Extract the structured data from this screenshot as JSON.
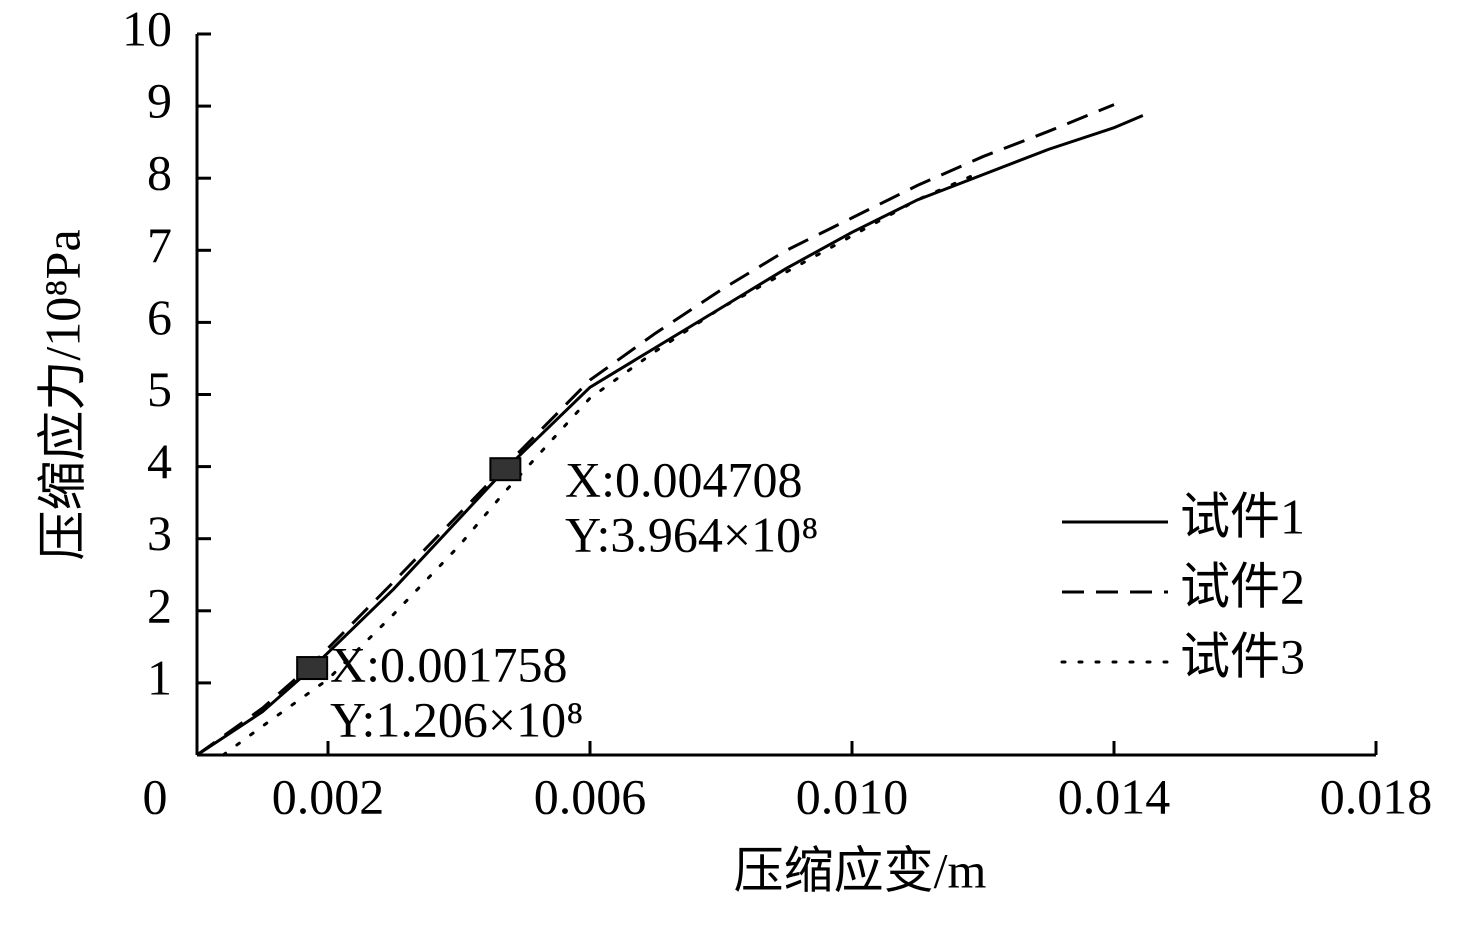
{
  "chart_data": {
    "type": "line",
    "xlabel": "压缩应变/m",
    "ylabel": "压缩应力/10⁸Pa",
    "xlim": [
      0,
      0.018
    ],
    "ylim": [
      0,
      10
    ],
    "xticks": [
      0,
      0.002,
      0.006,
      {
        "value": 0.01,
        "label": "0.010"
      },
      0.014,
      0.018
    ],
    "yticks": [
      1,
      2,
      3,
      4,
      5,
      6,
      7,
      8,
      9,
      10
    ],
    "grid": false,
    "legend": "right",
    "series": [
      {
        "name": "试件1",
        "color": "#000000",
        "dash": "solid",
        "x": [
          0,
          0.001,
          0.001758,
          0.003,
          0.004708,
          0.006,
          0.007,
          0.008,
          0.009,
          0.01,
          0.011,
          0.012,
          0.013,
          0.014,
          0.01444
        ],
        "values": [
          0,
          0.6,
          1.206,
          2.3,
          3.964,
          5.1,
          5.65,
          6.2,
          6.75,
          7.25,
          7.7,
          8.05,
          8.4,
          8.7,
          8.87
        ]
      },
      {
        "name": "试件2",
        "color": "#000000",
        "dash": "dashed",
        "x": [
          0,
          0.001,
          0.00176,
          0.003,
          0.0047,
          0.006,
          0.007,
          0.008,
          0.009,
          0.01,
          0.011,
          0.012,
          0.013,
          0.014
        ],
        "values": [
          0,
          0.65,
          1.26,
          2.4,
          4.0,
          5.2,
          5.85,
          6.45,
          7.0,
          7.45,
          7.9,
          8.3,
          8.65,
          9.02
        ]
      },
      {
        "name": "试件3",
        "color": "#000000",
        "dash": "dotted",
        "x": [
          0.0004,
          0.001,
          0.002,
          0.003,
          0.004,
          0.0047,
          0.006,
          0.007,
          0.008,
          0.009,
          0.01,
          0.011,
          0.012
        ],
        "values": [
          0,
          0.4,
          1.05,
          1.95,
          2.9,
          3.65,
          4.95,
          5.6,
          6.2,
          6.7,
          7.2,
          7.7,
          8.1
        ]
      }
    ],
    "annotations": [
      {
        "x": 0.001758,
        "y": 1.206,
        "text": [
          "X:0.001758",
          "Y:1.206×10⁸"
        ]
      },
      {
        "x": 0.004708,
        "y": 3.964,
        "text": [
          "X:0.004708",
          "Y:3.964×10⁸"
        ]
      }
    ]
  }
}
